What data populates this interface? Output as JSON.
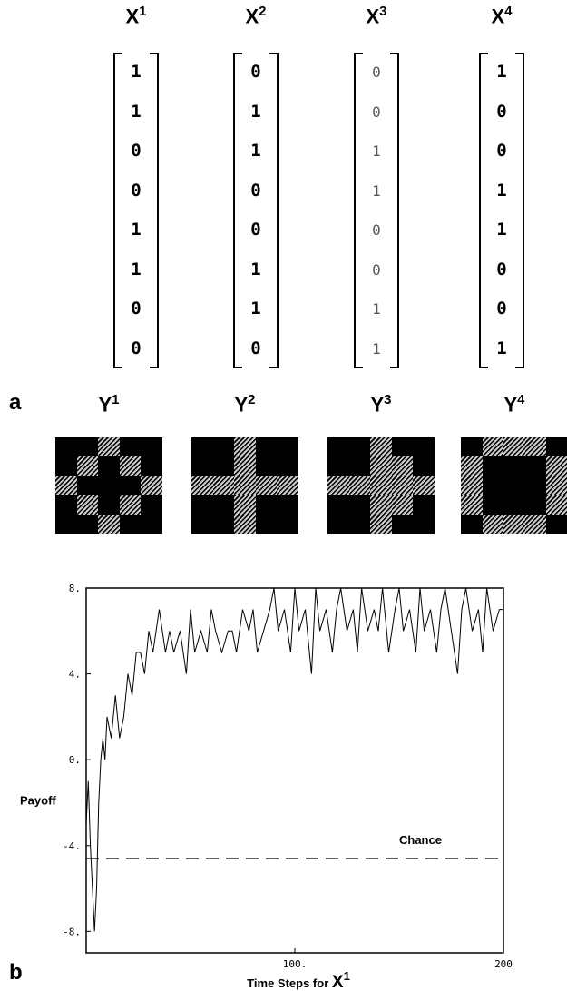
{
  "panel_a": {
    "letter": "a",
    "vectors": [
      {
        "name": "X",
        "sup": "1",
        "values": [
          "1",
          "1",
          "0",
          "0",
          "1",
          "1",
          "0",
          "0"
        ],
        "faint": false
      },
      {
        "name": "X",
        "sup": "2",
        "values": [
          "0",
          "1",
          "1",
          "0",
          "0",
          "1",
          "1",
          "0"
        ],
        "faint": false
      },
      {
        "name": "X",
        "sup": "3",
        "values": [
          "0",
          "0",
          "1",
          "1",
          "0",
          "0",
          "1",
          "1"
        ],
        "faint": true
      },
      {
        "name": "X",
        "sup": "4",
        "values": [
          "1",
          "0",
          "0",
          "1",
          "1",
          "0",
          "0",
          "1"
        ],
        "faint": false
      }
    ],
    "patterns": [
      {
        "name": "Y",
        "sup": "1",
        "grid": [
          [
            1,
            1,
            0,
            1,
            1
          ],
          [
            1,
            0,
            1,
            0,
            1
          ],
          [
            0,
            1,
            1,
            1,
            0
          ],
          [
            1,
            0,
            1,
            0,
            1
          ],
          [
            1,
            1,
            0,
            1,
            1
          ]
        ]
      },
      {
        "name": "Y",
        "sup": "2",
        "grid": [
          [
            1,
            1,
            0,
            1,
            1
          ],
          [
            1,
            1,
            0,
            1,
            1
          ],
          [
            0,
            0,
            0,
            0,
            0
          ],
          [
            1,
            1,
            0,
            1,
            1
          ],
          [
            1,
            1,
            0,
            1,
            1
          ]
        ]
      },
      {
        "name": "Y",
        "sup": "3",
        "grid": [
          [
            1,
            1,
            0,
            1,
            1
          ],
          [
            1,
            1,
            0,
            0,
            1
          ],
          [
            0,
            0,
            0,
            0,
            0
          ],
          [
            1,
            1,
            0,
            0,
            1
          ],
          [
            1,
            1,
            0,
            1,
            1
          ]
        ]
      },
      {
        "name": "Y",
        "sup": "4",
        "grid": [
          [
            1,
            0,
            0,
            0,
            1
          ],
          [
            0,
            1,
            1,
            1,
            0
          ],
          [
            0,
            1,
            1,
            1,
            0
          ],
          [
            0,
            1,
            1,
            1,
            0
          ],
          [
            1,
            0,
            0,
            0,
            1
          ]
        ]
      }
    ]
  },
  "panel_b": {
    "letter": "b",
    "xlabel_main": "Time Steps for",
    "xlabel_var": "X",
    "xlabel_sup": "1",
    "ylabel": "Payoff",
    "chance_label": "Chance"
  },
  "chart_data": {
    "type": "line",
    "title": "",
    "xlabel": "Time Steps for X1",
    "ylabel": "Payoff",
    "xlim": [
      0,
      200
    ],
    "ylim": [
      -9,
      8
    ],
    "x_ticks": [
      100,
      200
    ],
    "x_tick_labels": [
      "100.",
      "200"
    ],
    "y_ticks": [
      8,
      4,
      0,
      -4,
      -8
    ],
    "y_tick_labels": [
      "8.",
      "4.",
      "0.",
      "-4.",
      "-8."
    ],
    "grid": false,
    "series": [
      {
        "style": "solid",
        "x": [
          0,
          1,
          2,
          3,
          4,
          5,
          6,
          7,
          8,
          9,
          10,
          12,
          14,
          16,
          18,
          20,
          22,
          24,
          26,
          28,
          30,
          32,
          35,
          38,
          40,
          42,
          45,
          48,
          50,
          52,
          55,
          58,
          60,
          62,
          65,
          68,
          70,
          72,
          75,
          78,
          80,
          82,
          85,
          88,
          90,
          92,
          95,
          98,
          100,
          102,
          105,
          108,
          110,
          112,
          115,
          118,
          120,
          122,
          125,
          128,
          130,
          132,
          135,
          138,
          140,
          142,
          145,
          148,
          150,
          152,
          155,
          158,
          160,
          162,
          165,
          168,
          170,
          172,
          175,
          178,
          180,
          182,
          185,
          188,
          190,
          192,
          195,
          198,
          200
        ],
        "y": [
          -3,
          -1,
          -4,
          -6,
          -8,
          -6,
          -2,
          0,
          1,
          0,
          2,
          1,
          3,
          1,
          2,
          4,
          3,
          5,
          5,
          4,
          6,
          5,
          7,
          5,
          6,
          5,
          6,
          4,
          7,
          5,
          6,
          5,
          7,
          6,
          5,
          6,
          6,
          5,
          7,
          6,
          7,
          5,
          6,
          7,
          8,
          6,
          7,
          5,
          8,
          6,
          7,
          4,
          8,
          6,
          7,
          5,
          7,
          8,
          6,
          7,
          5,
          8,
          6,
          7,
          6,
          8,
          5,
          7,
          8,
          6,
          7,
          5,
          8,
          6,
          7,
          5,
          7,
          8,
          6,
          4,
          7,
          8,
          6,
          7,
          5,
          8,
          6,
          7,
          7
        ]
      },
      {
        "name": "Chance",
        "style": "dashed",
        "x": [
          0,
          200
        ],
        "y": [
          -4.6,
          -4.6
        ]
      }
    ]
  }
}
